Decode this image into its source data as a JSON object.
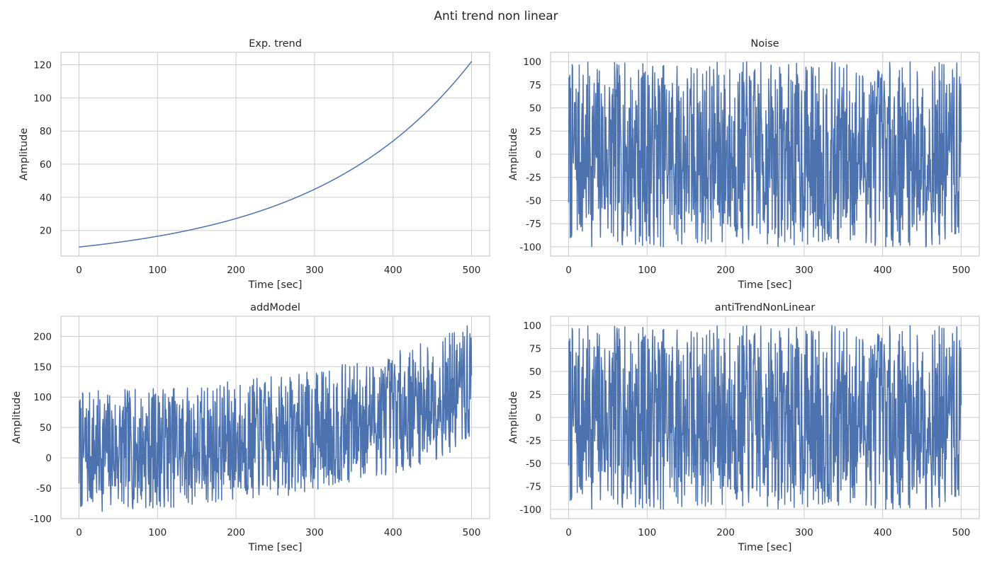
{
  "figure": {
    "suptitle": "Anti trend non linear"
  },
  "colors": {
    "line": "#4c72b0",
    "grid": "#cccccc",
    "frame": "#cccccc"
  },
  "chart_data": [
    {
      "type": "line",
      "title": "Exp. trend",
      "xlabel": "Time [sec]",
      "ylabel": "Amplitude",
      "xlim": [
        -23,
        523
      ],
      "ylim": [
        4.5,
        127.5
      ],
      "xticks": [
        0,
        100,
        200,
        300,
        400,
        500
      ],
      "yticks": [
        20,
        40,
        60,
        80,
        100,
        120
      ],
      "grid": true,
      "signal": {
        "kind": "exponential",
        "n": 1000,
        "t_end": 500,
        "start": 10,
        "end": 122
      }
    },
    {
      "type": "line",
      "title": "Noise",
      "xlabel": "Time [sec]",
      "ylabel": "Amplitude",
      "xlim": [
        -23,
        523
      ],
      "ylim": [
        -110,
        110
      ],
      "xticks": [
        0,
        100,
        200,
        300,
        400,
        500
      ],
      "yticks": [
        -100,
        -75,
        -50,
        -25,
        0,
        25,
        50,
        75,
        100
      ],
      "grid": true,
      "signal": {
        "kind": "uniform-noise",
        "n": 1000,
        "t_end": 500,
        "amplitude": 100,
        "seed": 7
      }
    },
    {
      "type": "line",
      "title": "addModel",
      "xlabel": "Time [sec]",
      "ylabel": "Amplitude",
      "xlim": [
        -23,
        523
      ],
      "ylim": [
        -100,
        233
      ],
      "xticks": [
        0,
        100,
        200,
        300,
        400,
        500
      ],
      "yticks": [
        -100,
        -50,
        0,
        50,
        100,
        150,
        200
      ],
      "grid": true,
      "signal": {
        "kind": "trend-plus-noise",
        "n": 1000,
        "t_end": 500,
        "start": 10,
        "end": 122,
        "amplitude": 100,
        "seed": 7
      }
    },
    {
      "type": "line",
      "title": "antiTrendNonLinear",
      "xlabel": "Time [sec]",
      "ylabel": "Amplitude",
      "xlim": [
        -23,
        523
      ],
      "ylim": [
        -110,
        110
      ],
      "xticks": [
        0,
        100,
        200,
        300,
        400,
        500
      ],
      "yticks": [
        -100,
        -75,
        -50,
        -25,
        0,
        25,
        50,
        75,
        100
      ],
      "grid": true,
      "signal": {
        "kind": "uniform-noise",
        "n": 1000,
        "t_end": 500,
        "amplitude": 100,
        "seed": 7
      }
    }
  ]
}
